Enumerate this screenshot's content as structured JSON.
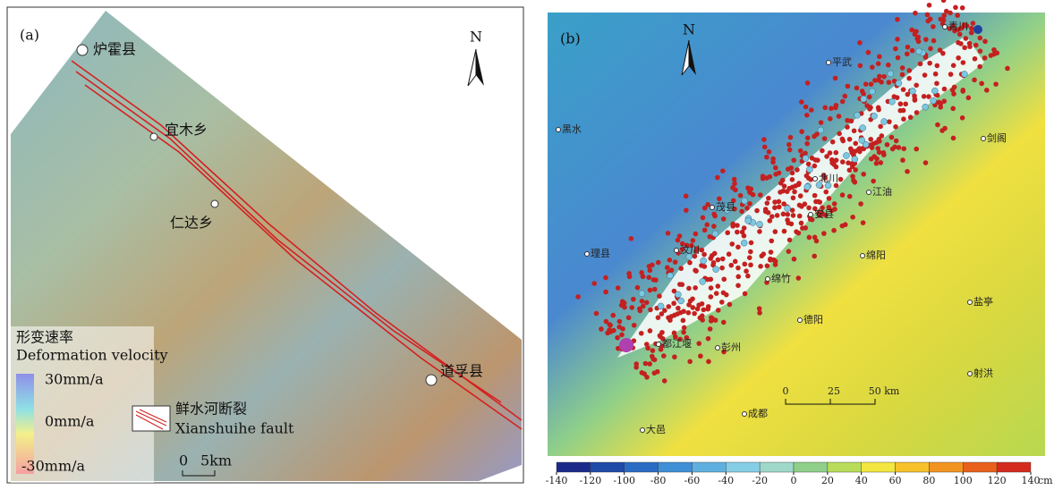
{
  "panel_a": {
    "label": "(a)",
    "north": "N",
    "places": [
      "炉霍县",
      "宜木乡",
      "仁达乡",
      "道孚县"
    ],
    "legend_title_cn": "形变速率",
    "legend_title_en": "Deformation velocity",
    "legend_ticks": [
      "30mm/a",
      "0mm/a",
      "-30mm/a"
    ],
    "fault_cn": "鲜水河断裂",
    "fault_en": "Xianshuihe fault",
    "scale": [
      "0",
      "5km"
    ]
  },
  "panel_b": {
    "label": "(b)",
    "north": "N",
    "places": [
      "青川",
      "平武",
      "黑水",
      "剑阁",
      "北川",
      "江油",
      "茂县",
      "安县",
      "汶川",
      "理县",
      "绵阳",
      "绵竹",
      "盐亭",
      "德阳",
      "都江堰",
      "彭州",
      "射洪",
      "成都",
      "大邑"
    ],
    "scale": [
      "0",
      "25",
      "50 km"
    ],
    "colorbar": {
      "lim": [
        -140,
        140
      ],
      "ticks": [
        -140,
        -120,
        -100,
        -80,
        -60,
        -40,
        -20,
        0,
        20,
        40,
        60,
        80,
        100,
        120,
        140
      ],
      "unit": "cm",
      "colors": [
        "#1b2a8a",
        "#1f4aa8",
        "#2a6cc4",
        "#3f8fd6",
        "#5fb0e0",
        "#86cde6",
        "#9fd8c8",
        "#8fcf8a",
        "#b9dc5a",
        "#f3e640",
        "#f7c12a",
        "#f29420",
        "#e8601c",
        "#d42a1e"
      ]
    }
  }
}
